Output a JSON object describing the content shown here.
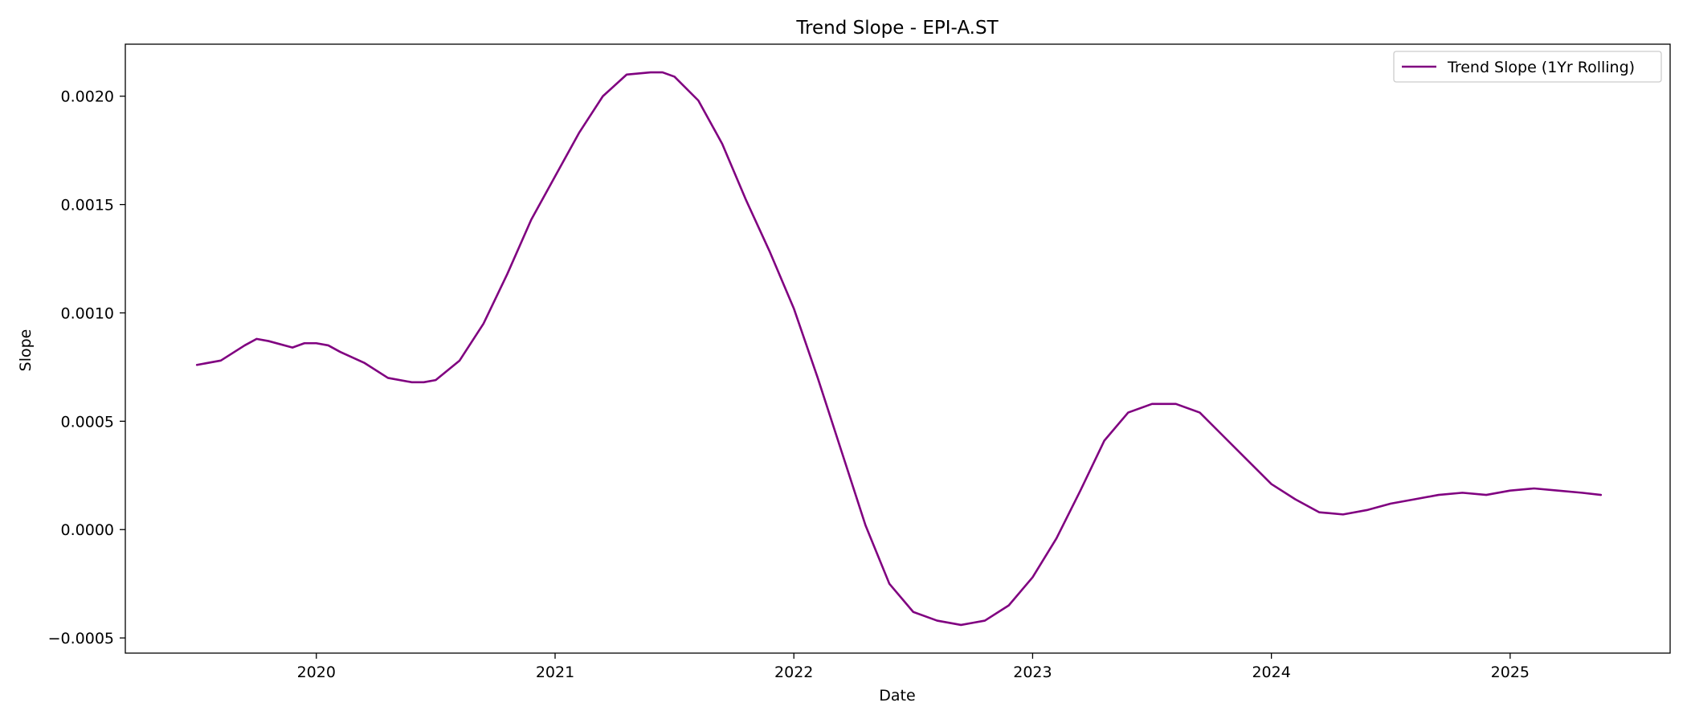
{
  "chart_data": {
    "type": "line",
    "title": "Trend Slope - EPI-A.ST",
    "xlabel": "Date",
    "ylabel": "Slope",
    "xlim": [
      2019.2,
      2025.67
    ],
    "ylim": [
      -0.00057,
      0.00224
    ],
    "x_ticks": [
      2020,
      2021,
      2022,
      2023,
      2024,
      2025
    ],
    "x_tick_labels": [
      "2020",
      "2021",
      "2022",
      "2023",
      "2024",
      "2025"
    ],
    "y_ticks": [
      -0.0005,
      0.0,
      0.0005,
      0.001,
      0.0015,
      0.002
    ],
    "y_tick_labels": [
      "−0.0005",
      "0.0000",
      "0.0005",
      "0.0010",
      "0.0015",
      "0.0020"
    ],
    "grid": false,
    "legend_position": "top-right",
    "series": [
      {
        "name": "Trend Slope (1Yr Rolling)",
        "color": "#800080",
        "x": [
          2019.5,
          2019.6,
          2019.7,
          2019.75,
          2019.8,
          2019.9,
          2019.95,
          2020.0,
          2020.05,
          2020.1,
          2020.2,
          2020.3,
          2020.4,
          2020.45,
          2020.5,
          2020.6,
          2020.7,
          2020.8,
          2020.9,
          2021.0,
          2021.1,
          2021.2,
          2021.3,
          2021.4,
          2021.45,
          2021.5,
          2021.6,
          2021.7,
          2021.8,
          2021.9,
          2022.0,
          2022.1,
          2022.2,
          2022.3,
          2022.4,
          2022.5,
          2022.6,
          2022.7,
          2022.75,
          2022.8,
          2022.9,
          2023.0,
          2023.1,
          2023.2,
          2023.3,
          2023.4,
          2023.5,
          2023.55,
          2023.6,
          2023.7,
          2023.8,
          2023.9,
          2024.0,
          2024.1,
          2024.2,
          2024.3,
          2024.4,
          2024.5,
          2024.6,
          2024.7,
          2024.8,
          2024.9,
          2025.0,
          2025.1,
          2025.2,
          2025.3,
          2025.38
        ],
        "y": [
          0.00076,
          0.00078,
          0.00085,
          0.00088,
          0.00087,
          0.00084,
          0.00086,
          0.00086,
          0.00085,
          0.00082,
          0.00077,
          0.0007,
          0.00068,
          0.00068,
          0.00069,
          0.00078,
          0.00095,
          0.00118,
          0.00143,
          0.00163,
          0.00183,
          0.002,
          0.0021,
          0.00211,
          0.00211,
          0.00209,
          0.00198,
          0.00178,
          0.00152,
          0.00128,
          0.00102,
          0.0007,
          0.00036,
          2e-05,
          -0.00025,
          -0.00038,
          -0.00042,
          -0.00044,
          -0.00043,
          -0.00042,
          -0.00035,
          -0.00022,
          -4e-05,
          0.00018,
          0.00041,
          0.00054,
          0.00058,
          0.00058,
          0.00058,
          0.00054,
          0.00043,
          0.00032,
          0.00021,
          0.00014,
          8e-05,
          7e-05,
          9e-05,
          0.00012,
          0.00014,
          0.00016,
          0.00017,
          0.00016,
          0.00018,
          0.00019,
          0.00018,
          0.00017,
          0.00016
        ]
      }
    ]
  }
}
